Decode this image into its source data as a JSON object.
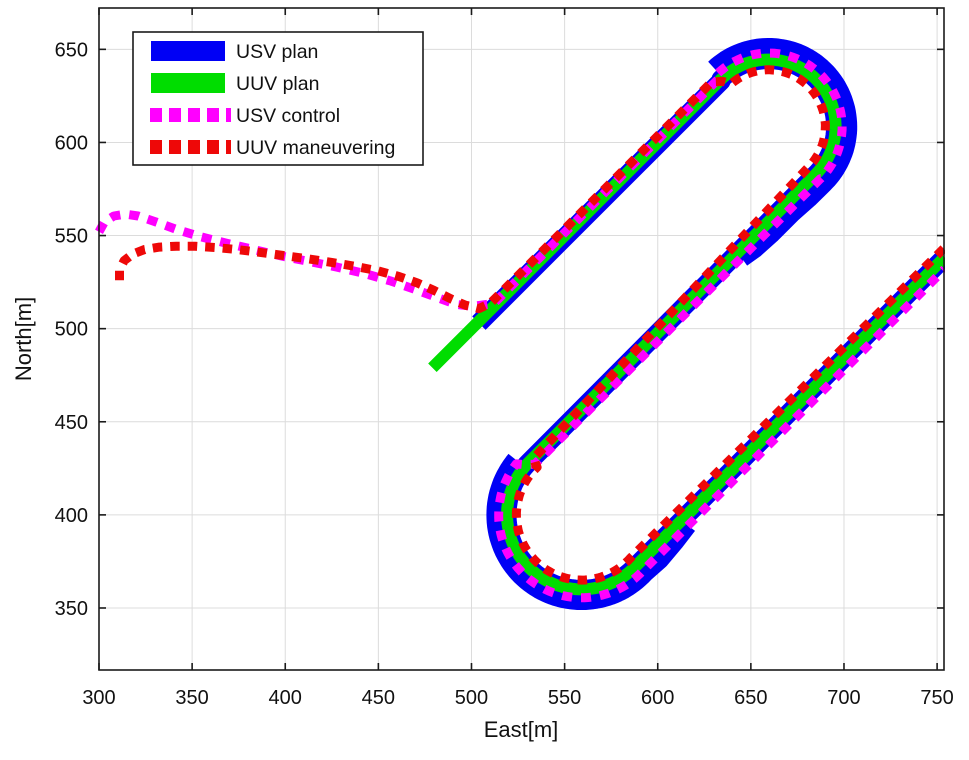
{
  "figure": {
    "background": "#ffffff"
  },
  "axes": {
    "xlabel": "East[m]",
    "ylabel": "North[m]",
    "x_ticks": [
      300,
      350,
      400,
      450,
      500,
      550,
      600,
      650,
      700,
      750
    ],
    "y_ticks": [
      350,
      400,
      450,
      500,
      550,
      600,
      650
    ],
    "grid_color": "#dcdcdc",
    "spine_color": "#1a1a1a"
  },
  "legend": {
    "items": [
      {
        "label": "USV plan",
        "color": "#0000f5",
        "dashed": false
      },
      {
        "label": "UUV plan",
        "color": "#00dd00",
        "dashed": false
      },
      {
        "label": "USV control",
        "color": "#ff00ff",
        "dashed": true
      },
      {
        "label": "UUV maneuvering",
        "color": "#ee0808",
        "dashed": true
      }
    ]
  },
  "chart_data": {
    "type": "line",
    "title": "",
    "xlabel": "East[m]",
    "ylabel": "North[m]",
    "xlim": [
      300,
      753.7
    ],
    "ylim": [
      316.7,
      672.2
    ],
    "grid": true,
    "legend_position": "top-left",
    "description": "Lawnmower survey pattern: three 45-degree legs (y=x, y=x-102, y=x-215.7) joined by 180-degree turns; planned USV/UUV corridors plus dashed executed trajectories approaching from the west.",
    "series": [
      {
        "name": "USV plan",
        "color": "#0000f5",
        "width": 19,
        "dash": null,
        "strokes": [
          [
            {
              "line": [
                [
                  504,
                  503
                ],
                [
                  634,
                  633
                ]
              ]
            },
            {
              "arc": {
                "c": [
                  659.5,
                  608.5
                ],
                "r": 36,
                "a0": 135,
                "a1": -45
              }
            },
            {
              "line": [
                [
                  684.9,
                  583
                ],
                [
                  530.8,
                  428.3
                ]
              ]
            },
            {
              "arc": {
                "c": [
                  559.1,
                  400
                ],
                "r": 40,
                "a0": 135,
                "a1": 315
              }
            },
            {
              "line": [
                [
                  587.4,
                  371.7
                ],
                [
                  754,
                  538.3
                ]
              ]
            }
          ],
          [
            {
              "arc": {
                "c": [
                  659.5,
                  608.5
                ],
                "r": 42.5,
                "a0": 133,
                "a1": -46
              }
            },
            {
              "line": [
                [
                  689,
                  577.9
                ],
                [
                  681,
                  570
                ],
                [
                  672,
                  562
                ],
                [
                  661,
                  551
                ],
                [
                  652,
                  543
                ],
                [
                  645,
                  538
                ]
              ]
            }
          ],
          [
            {
              "arc": {
                "c": [
                  559.1,
                  400
                ],
                "r": 46,
                "a0": 140,
                "a1": 318
              }
            },
            {
              "line": [
                [
                  593.3,
                  369.2
                ],
                [
                  601,
                  376
                ],
                [
                  609,
                  385.5
                ],
                [
                  616,
                  394.5
                ]
              ]
            }
          ]
        ]
      },
      {
        "name": "UUV plan",
        "color": "#00dd00",
        "width": 12,
        "dash": null,
        "strokes": [
          [
            {
              "line": [
                [
                  479,
                  479
                ],
                [
                  634,
                  634
                ]
              ]
            },
            {
              "arc": {
                "c": [
                  659.5,
                  608.5
                ],
                "r": 36,
                "a0": 135,
                "a1": -45
              }
            },
            {
              "line": [
                [
                  684.9,
                  583
                ],
                [
                  530.8,
                  428.3
                ]
              ]
            },
            {
              "arc": {
                "c": [
                  559.1,
                  400
                ],
                "r": 40,
                "a0": 135,
                "a1": 315
              }
            },
            {
              "line": [
                [
                  587.4,
                  371.7
                ],
                [
                  754,
                  538.3
                ]
              ]
            }
          ]
        ]
      },
      {
        "name": "USV control",
        "color": "#ff00ff",
        "width": 9,
        "dash": "10 9",
        "strokes": [
          [
            {
              "line": [
                [
                  300,
                  552
                ],
                [
                  303,
                  557.5
                ],
                [
                  308,
                  560.5
                ],
                [
                  314,
                  561.5
                ],
                [
                  321,
                  560.5
                ],
                [
                  330,
                  557.5
                ],
                [
                  341,
                  553.5
                ],
                [
                  354,
                  549.5
                ],
                [
                  368,
                  546
                ],
                [
                  383,
                  542.5
                ],
                [
                  398,
                  539
                ],
                [
                  413,
                  536
                ],
                [
                  428,
                  533
                ],
                [
                  443,
                  529.5
                ],
                [
                  457,
                  525.5
                ],
                [
                  470,
                  521
                ],
                [
                  482,
                  516.5
                ],
                [
                  492,
                  513
                ],
                [
                  501,
                  512
                ],
                [
                  508,
                  513
                ],
                [
                  512,
                  513.5
                ],
                [
                  633,
                  634.5
                ]
              ]
            },
            {
              "arc": {
                "c": [
                  659.5,
                  608.5
                ],
                "r": 39.5,
                "a0": 135,
                "a1": -45
              }
            },
            {
              "line": [
                [
                  687.4,
                  580.6
                ],
                [
                  534,
                  427.2
                ],
                [
                  528.5,
                  427
                ]
              ]
            },
            {
              "arc": {
                "c": [
                  559.1,
                  400
                ],
                "r": 44.5,
                "a0": 142,
                "a1": 318
              }
            },
            {
              "line": [
                [
                  592.2,
                  370.2
                ],
                [
                  754,
                  532
                ]
              ]
            }
          ]
        ]
      },
      {
        "name": "UUV maneuvering",
        "color": "#ee0808",
        "width": 9,
        "dash": "9.5 8",
        "strokes": [
          [
            {
              "line": [
                [
                  311,
                  526
                ],
                [
                  311,
                  531.5
                ],
                [
                  313.5,
                  536.5
                ],
                [
                  318,
                  540
                ],
                [
                  324.5,
                  542.5
                ],
                [
                  332.5,
                  543.8
                ],
                [
                  341.5,
                  544.3
                ],
                [
                  351.5,
                  544.3
                ],
                [
                  362.5,
                  543.6
                ],
                [
                  374,
                  542.5
                ],
                [
                  386,
                  541
                ],
                [
                  399,
                  539.3
                ],
                [
                  412,
                  537.5
                ],
                [
                  425,
                  535.6
                ],
                [
                  438,
                  533.4
                ],
                [
                  450,
                  531
                ],
                [
                  461,
                  528
                ],
                [
                  471,
                  524.5
                ],
                [
                  480,
                  520.5
                ],
                [
                  489,
                  516
                ],
                [
                  497,
                  512.5
                ],
                [
                  504,
                  510.8
                ],
                [
                  510,
                  513.5
                ],
                [
                  516,
                  519.5
                ],
                [
                  629,
                  632.5
                ],
                [
                  635,
                  632.8
                ]
              ]
            },
            {
              "arc": {
                "c": [
                  659.5,
                  608.5
                ],
                "r": 30.5,
                "a0": 131,
                "a1": -45
              }
            },
            {
              "line": [
                [
                  681.1,
                  586.9
                ],
                [
                  533.5,
                  430.5
                ],
                [
                  534.2,
                  428
                ]
              ]
            },
            {
              "arc": {
                "c": [
                  559.1,
                  400
                ],
                "r": 35,
                "a0": 133,
                "a1": 318
              }
            },
            {
              "line": [
                [
                  585.1,
                  376.6
                ],
                [
                  754,
                  543.5
                ]
              ]
            }
          ]
        ]
      }
    ]
  }
}
